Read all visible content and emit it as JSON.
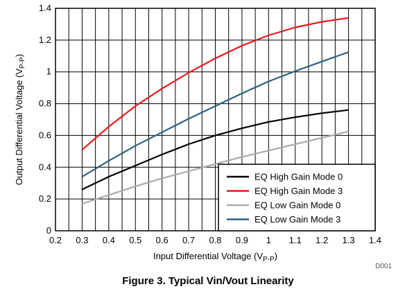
{
  "chart_data": {
    "type": "line",
    "caption": "Figure 3.  Typical Vin/Vout Linearity",
    "figure_code": "D001",
    "xlabel": {
      "main": "Input Differential Voltage (V",
      "sub": "P-P",
      "close": ")"
    },
    "ylabel": {
      "main": "Output Differential Voltage (V",
      "sub": "P-P",
      "close": ")"
    },
    "xlim": [
      0.2,
      1.4
    ],
    "ylim": [
      0,
      1.4
    ],
    "x_ticks": [
      0.2,
      0.3,
      0.4,
      0.5,
      0.6,
      0.7,
      0.8,
      0.9,
      1.0,
      1.1,
      1.2,
      1.3,
      1.4
    ],
    "x_tick_labels": [
      "0.2",
      "0.3",
      "0.4",
      "0.5",
      "0.6",
      "0.7",
      "0.8",
      "0.9",
      "1",
      "1.1",
      "1.2",
      "1.3",
      "1.4"
    ],
    "y_ticks": [
      0,
      0.2,
      0.4,
      0.6,
      0.8,
      1.0,
      1.2,
      1.4
    ],
    "y_tick_labels": [
      "0",
      "0.2",
      "0.4",
      "0.6",
      "0.8",
      "1",
      "1.2",
      "1.4"
    ],
    "x_minor_gridlines": [
      0.25,
      0.35,
      0.45,
      0.55,
      0.65,
      0.75,
      0.85,
      0.95,
      1.05,
      1.15,
      1.25,
      1.35
    ],
    "grid": true,
    "legend_position": "bottom-right",
    "x": [
      0.3,
      0.4,
      0.5,
      0.6,
      0.7,
      0.8,
      0.9,
      1.0,
      1.1,
      1.2,
      1.3
    ],
    "series": [
      {
        "name": "EQ High Gain Mode 0",
        "color": "#000000",
        "values": [
          0.26,
          0.34,
          0.41,
          0.48,
          0.545,
          0.6,
          0.645,
          0.685,
          0.715,
          0.74,
          0.76
        ]
      },
      {
        "name": "EQ High Gain Mode 3",
        "color": "#e8191b",
        "values": [
          0.51,
          0.655,
          0.785,
          0.895,
          0.995,
          1.085,
          1.165,
          1.23,
          1.28,
          1.315,
          1.34
        ]
      },
      {
        "name": "EQ Low Gain Mode 0",
        "color": "#aaaaaa",
        "values": [
          0.17,
          0.225,
          0.28,
          0.33,
          0.375,
          0.42,
          0.465,
          0.505,
          0.545,
          0.585,
          0.625
        ]
      },
      {
        "name": "EQ Low Gain Mode 3",
        "color": "#2e6080",
        "values": [
          0.34,
          0.44,
          0.535,
          0.62,
          0.705,
          0.785,
          0.865,
          0.94,
          1.005,
          1.065,
          1.125
        ]
      }
    ]
  }
}
